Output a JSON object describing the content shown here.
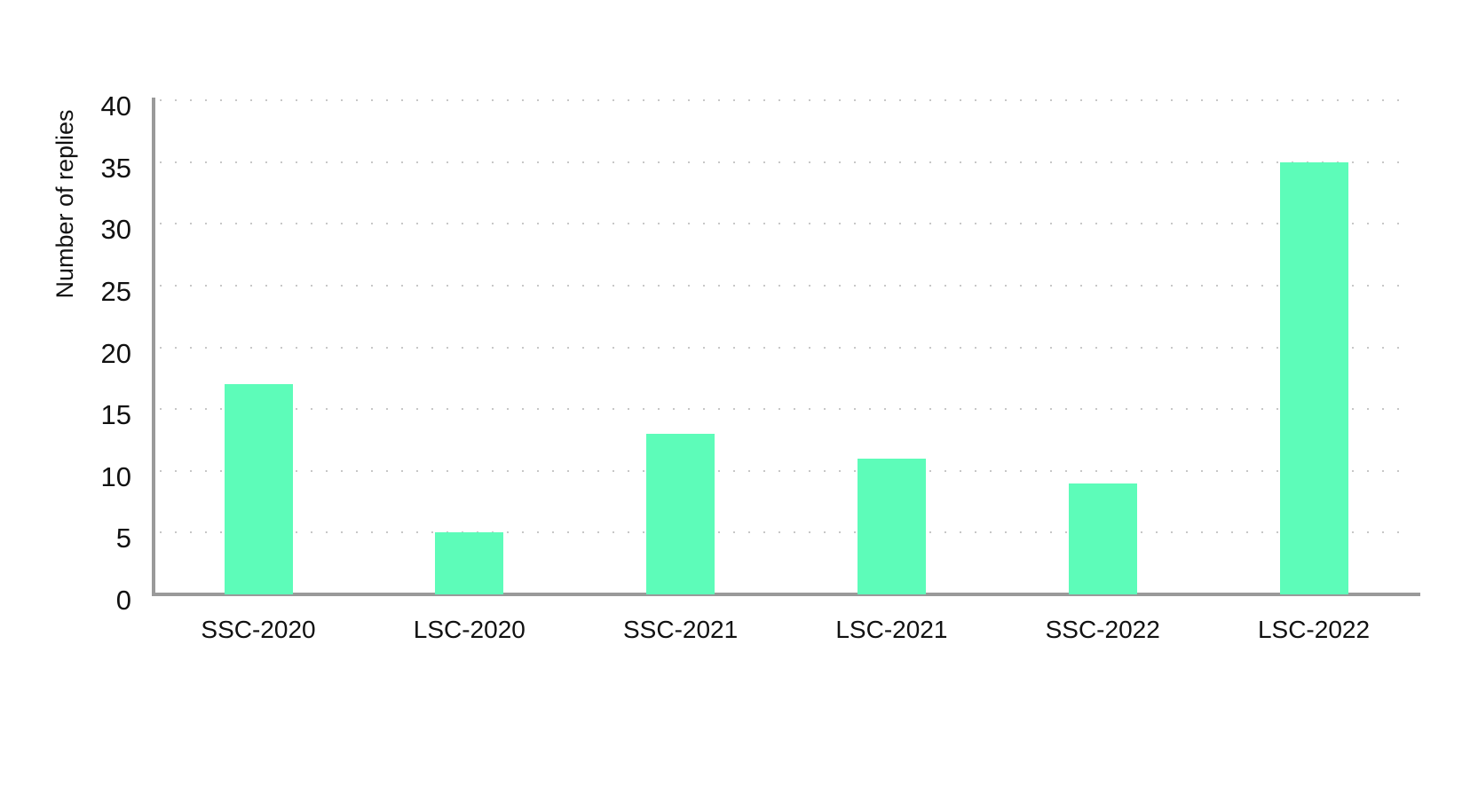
{
  "chart_data": {
    "type": "bar",
    "categories": [
      "SSC-2020",
      "LSC-2020",
      "SSC-2021",
      "LSC-2021",
      "SSC-2022",
      "LSC-2022"
    ],
    "values": [
      17,
      5,
      13,
      11,
      9,
      35
    ],
    "title": "",
    "xlabel": "",
    "ylabel": "Number of replies",
    "ylim": [
      0,
      40
    ],
    "ytick_step": 5,
    "yticks": [
      0,
      5,
      10,
      15,
      20,
      25,
      30,
      35,
      40
    ],
    "grid": "dotted-horizontal",
    "legend": "none",
    "colors": {
      "bar_fill": "#5dfcb9",
      "axis_line": "#9a9a9a",
      "grid_dots": "#c7c7c7",
      "label_text": "#111111",
      "background": "#ffffff"
    }
  }
}
